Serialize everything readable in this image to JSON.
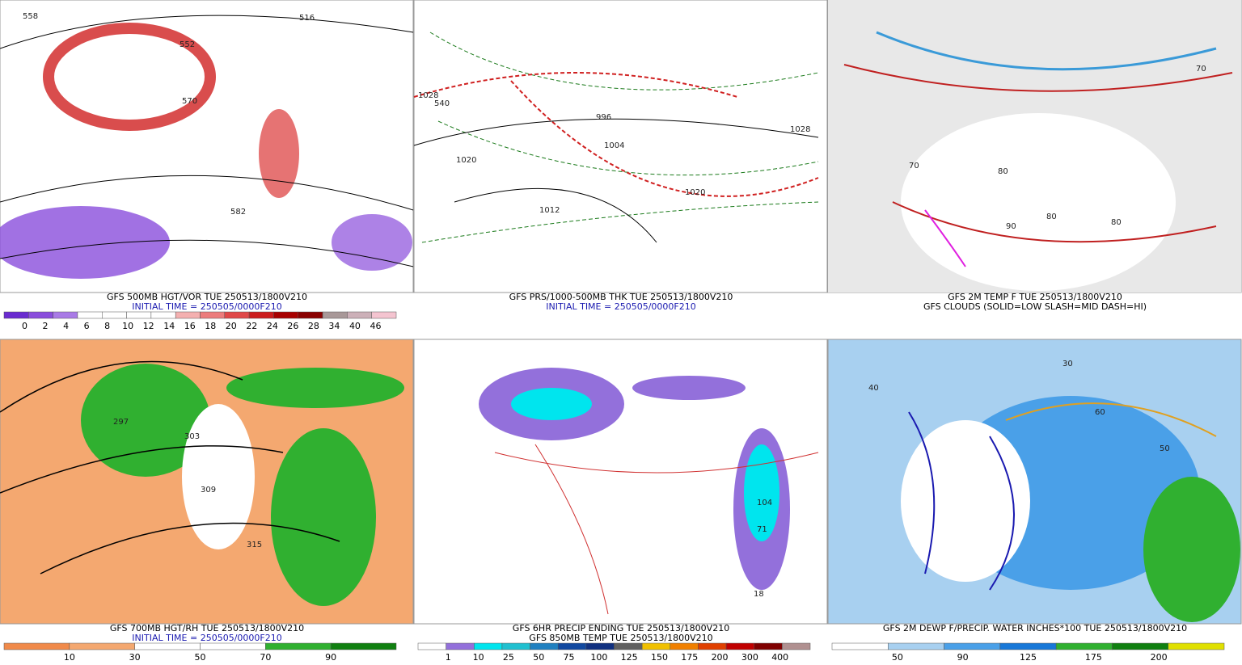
{
  "panels": [
    {
      "title": "GFS 500MB HGT/VOR TUE 250513/1800V210",
      "subtitle": "INITIAL TIME = 250505/0000F210",
      "colorbar": {
        "colors": [
          "#6a2bd0",
          "#8a4ddc",
          "#a97ae6",
          "#ffffff",
          "#ffffff",
          "#ffffff",
          "#ffffff",
          "#f4b0b0",
          "#ec7c7c",
          "#e04848",
          "#cc1c1c",
          "#a80000",
          "#8a0000",
          "#a89898",
          "#ccb0b8",
          "#f4c4d0"
        ],
        "labels": [
          "0",
          "2",
          "4",
          "6",
          "8",
          "10",
          "12",
          "14",
          "16",
          "18",
          "20",
          "22",
          "24",
          "26",
          "28",
          "34",
          "40",
          "46"
        ]
      },
      "map_labels": [
        "558",
        "516",
        "570",
        "582",
        "552"
      ]
    },
    {
      "title": "GFS PRS/1000-500MB THK TUE 250513/1800V210",
      "subtitle": "INITIAL TIME = 250505/0000F210",
      "map_labels": [
        "1028",
        "1020",
        "1012",
        "1004",
        "996",
        "540",
        "1020",
        "1028"
      ]
    },
    {
      "title": "GFS 2M TEMP F TUE 250513/1800V210",
      "subtitle": "GFS CLOUDS (SOLID=LOW SLASH=MID DASH=HI)",
      "map_labels": [
        "70",
        "80",
        "80",
        "90",
        "80",
        "70"
      ]
    },
    {
      "title": "GFS 700MB HGT/RH TUE 250513/1800V210",
      "subtitle": "INITIAL TIME = 250505/0000F210",
      "colorbar": {
        "colors": [
          "#f08a4a",
          "#f4a870",
          "#ffffff",
          "#ffffff",
          "#30b030",
          "#108010"
        ],
        "labels": [
          "10",
          "30",
          "50",
          "70",
          "90"
        ]
      },
      "map_labels": [
        "297",
        "303",
        "309",
        "315"
      ]
    },
    {
      "title": "GFS 6HR PRECIP ENDING TUE 250513/1800V210",
      "subtitle": "GFS 850MB TEMP TUE 250513/1800V210",
      "colorbar": {
        "colors": [
          "#ffffff",
          "#9370db",
          "#00e5ee",
          "#20c0d0",
          "#2080c0",
          "#1048a0",
          "#103080",
          "#606060",
          "#f0c000",
          "#f08000",
          "#e04000",
          "#c00000",
          "#800000",
          "#b09090"
        ],
        "labels": [
          "1",
          "10",
          "25",
          "50",
          "75",
          "100",
          "125",
          "150",
          "175",
          "200",
          "300",
          "400"
        ]
      },
      "map_labels": [
        "104",
        "71",
        "18"
      ]
    },
    {
      "title": "GFS 2M DEWP F/PRECIP. WATER INCHES*100 TUE 250513/1800V210",
      "colorbar": {
        "colors": [
          "#ffffff",
          "#a8d0f0",
          "#4aa0e8",
          "#1878d8",
          "#30b030",
          "#108010",
          "#e0e000"
        ],
        "labels": [
          "50",
          "90",
          "125",
          "175",
          "200"
        ]
      },
      "map_labels": [
        "30",
        "40",
        "50",
        "60"
      ]
    }
  ]
}
